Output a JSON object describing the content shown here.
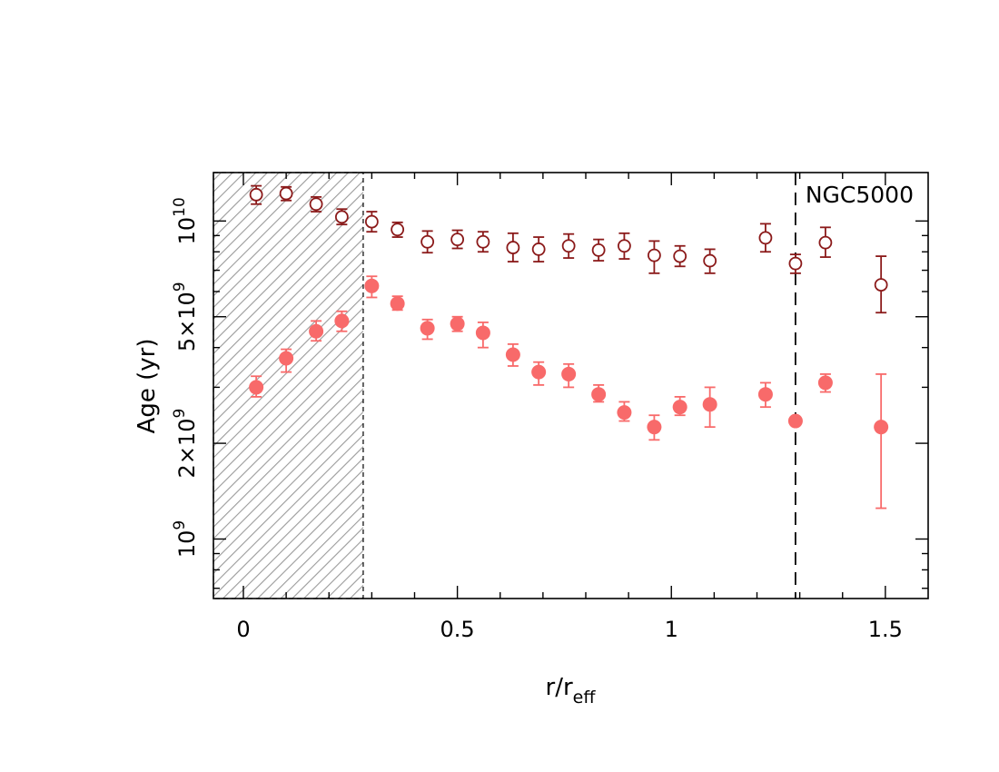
{
  "chart_data": {
    "type": "scatter",
    "title": "",
    "annotation": "NGC5000",
    "xlabel": {
      "main": "r/r",
      "sub": "eff"
    },
    "ylabel": "Age (yr)",
    "xlim": [
      -0.07,
      1.6
    ],
    "ylim": [
      650000000,
      14200000000
    ],
    "yscale": "log",
    "x_ticks": [
      {
        "value": 0,
        "label": "0"
      },
      {
        "value": 0.5,
        "label": "0.5"
      },
      {
        "value": 1,
        "label": "1"
      },
      {
        "value": 1.5,
        "label": "1.5"
      }
    ],
    "y_ticks": [
      {
        "value": 1000000000,
        "base": "10",
        "exp": "9"
      },
      {
        "value": 2000000000,
        "base": "2×10",
        "exp": "9"
      },
      {
        "value": 5000000000,
        "base": "5×10",
        "exp": "9"
      },
      {
        "value": 10000000000,
        "base": "10",
        "exp": "10"
      }
    ],
    "shaded_region": {
      "x_from": -0.07,
      "x_to": 0.28
    },
    "vertical_line": {
      "x": 1.29
    },
    "grid": false,
    "series": [
      {
        "marker": "open-circle",
        "color": "#8b1a1a",
        "points": [
          {
            "x": 0.03,
            "y": 12100000000,
            "lo": 11300000000,
            "hi": 12900000000
          },
          {
            "x": 0.1,
            "y": 12200000000,
            "lo": 11600000000,
            "hi": 12800000000
          },
          {
            "x": 0.17,
            "y": 11300000000,
            "lo": 10700000000,
            "hi": 11900000000
          },
          {
            "x": 0.23,
            "y": 10300000000,
            "lo": 9750000000,
            "hi": 10900000000
          },
          {
            "x": 0.3,
            "y": 9950000000,
            "lo": 9250000000,
            "hi": 10700000000
          },
          {
            "x": 0.36,
            "y": 9400000000,
            "lo": 8900000000,
            "hi": 9900000000
          },
          {
            "x": 0.43,
            "y": 8600000000,
            "lo": 7950000000,
            "hi": 9300000000
          },
          {
            "x": 0.5,
            "y": 8750000000,
            "lo": 8200000000,
            "hi": 9350000000
          },
          {
            "x": 0.56,
            "y": 8600000000,
            "lo": 8000000000,
            "hi": 9250000000
          },
          {
            "x": 0.63,
            "y": 8250000000,
            "lo": 7450000000,
            "hi": 9150000000
          },
          {
            "x": 0.69,
            "y": 8150000000,
            "lo": 7450000000,
            "hi": 8900000000
          },
          {
            "x": 0.76,
            "y": 8350000000,
            "lo": 7650000000,
            "hi": 9100000000
          },
          {
            "x": 0.83,
            "y": 8100000000,
            "lo": 7500000000,
            "hi": 8750000000
          },
          {
            "x": 0.89,
            "y": 8350000000,
            "lo": 7600000000,
            "hi": 9150000000
          },
          {
            "x": 0.96,
            "y": 7800000000,
            "lo": 6850000000,
            "hi": 8650000000
          },
          {
            "x": 1.02,
            "y": 7750000000,
            "lo": 7200000000,
            "hi": 8350000000
          },
          {
            "x": 1.09,
            "y": 7500000000,
            "lo": 6850000000,
            "hi": 8150000000
          },
          {
            "x": 1.22,
            "y": 8850000000,
            "lo": 8000000000,
            "hi": 9800000000
          },
          {
            "x": 1.29,
            "y": 7350000000,
            "lo": 6850000000,
            "hi": 7850000000
          },
          {
            "x": 1.36,
            "y": 8550000000,
            "lo": 7700000000,
            "hi": 9550000000
          },
          {
            "x": 1.49,
            "y": 6300000000,
            "lo": 5150000000,
            "hi": 7750000000
          }
        ]
      },
      {
        "marker": "filled-circle",
        "color": "#f86a6a",
        "points": [
          {
            "x": 0.03,
            "y": 3000000000,
            "lo": 2800000000,
            "hi": 3250000000
          },
          {
            "x": 0.1,
            "y": 3700000000,
            "lo": 3350000000,
            "hi": 3950000000
          },
          {
            "x": 0.17,
            "y": 4500000000,
            "lo": 4200000000,
            "hi": 4850000000
          },
          {
            "x": 0.23,
            "y": 4850000000,
            "lo": 4500000000,
            "hi": 5200000000
          },
          {
            "x": 0.3,
            "y": 6250000000,
            "lo": 5750000000,
            "hi": 6700000000
          },
          {
            "x": 0.36,
            "y": 5500000000,
            "lo": 5250000000,
            "hi": 5800000000
          },
          {
            "x": 0.43,
            "y": 4600000000,
            "lo": 4250000000,
            "hi": 4900000000
          },
          {
            "x": 0.5,
            "y": 4750000000,
            "lo": 4500000000,
            "hi": 5000000000
          },
          {
            "x": 0.56,
            "y": 4450000000,
            "lo": 4000000000,
            "hi": 4800000000
          },
          {
            "x": 0.63,
            "y": 3800000000,
            "lo": 3500000000,
            "hi": 4100000000
          },
          {
            "x": 0.69,
            "y": 3350000000,
            "lo": 3050000000,
            "hi": 3600000000
          },
          {
            "x": 0.76,
            "y": 3300000000,
            "lo": 3000000000,
            "hi": 3550000000
          },
          {
            "x": 0.83,
            "y": 2850000000,
            "lo": 2700000000,
            "hi": 3050000000
          },
          {
            "x": 0.89,
            "y": 2500000000,
            "lo": 2350000000,
            "hi": 2700000000
          },
          {
            "x": 0.96,
            "y": 2250000000,
            "lo": 2050000000,
            "hi": 2450000000
          },
          {
            "x": 1.02,
            "y": 2600000000,
            "lo": 2450000000,
            "hi": 2800000000
          },
          {
            "x": 1.09,
            "y": 2650000000,
            "lo": 2250000000,
            "hi": 3000000000
          },
          {
            "x": 1.22,
            "y": 2850000000,
            "lo": 2600000000,
            "hi": 3100000000
          },
          {
            "x": 1.29,
            "y": 2350000000,
            "lo": 2300000000,
            "hi": 2400000000
          },
          {
            "x": 1.36,
            "y": 3100000000,
            "lo": 2900000000,
            "hi": 3300000000
          },
          {
            "x": 1.49,
            "y": 2250000000,
            "lo": 1250000000,
            "hi": 3300000000
          }
        ]
      }
    ]
  }
}
